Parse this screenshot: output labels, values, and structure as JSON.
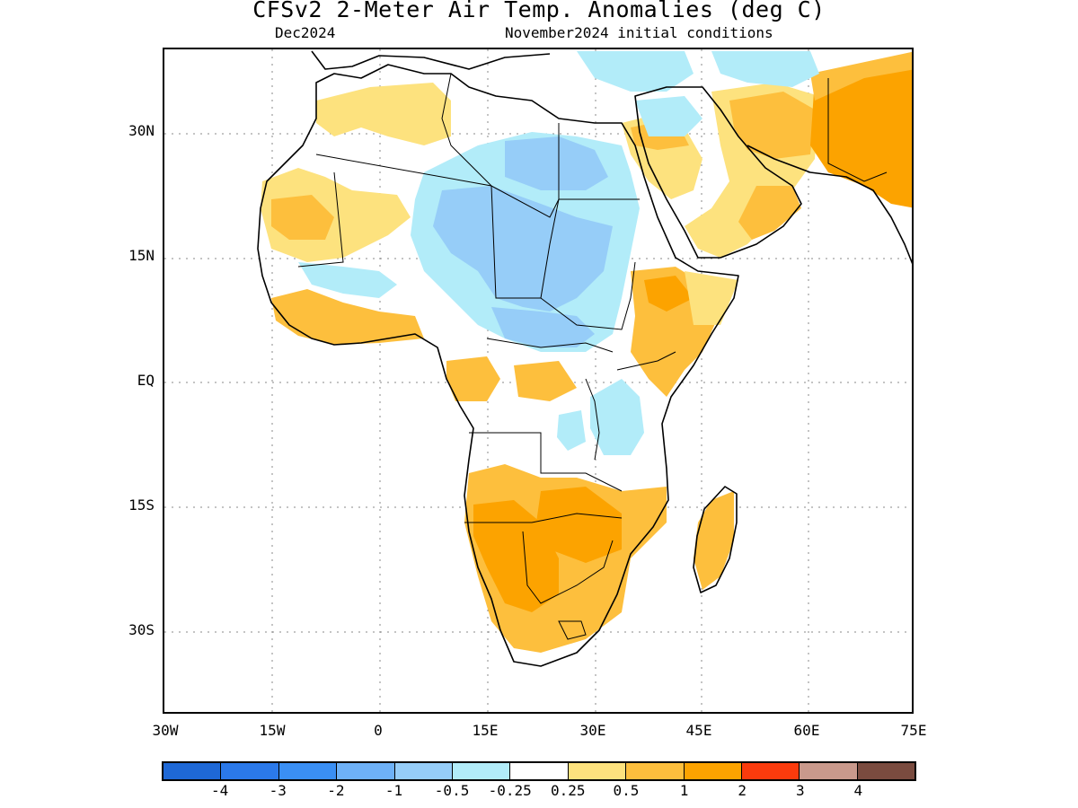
{
  "title": "CFSv2 2-Meter Air Temp. Anomalies (deg C)",
  "subtitle_left": "Dec2024",
  "subtitle_right": "November2024 initial conditions",
  "lat_labels": [
    "30N",
    "15N",
    "EQ",
    "15S",
    "30S"
  ],
  "lon_labels": [
    "30W",
    "15W",
    "0",
    "15E",
    "30E",
    "45E",
    "60E",
    "75E"
  ],
  "colorbar": {
    "colors": [
      "#1e68d6",
      "#2b79ea",
      "#3a8ff4",
      "#6eb1f7",
      "#96cdf8",
      "#b2ecf9",
      "#ffffff",
      "#fde27e",
      "#fdbf3d",
      "#fca300",
      "#fb3b0d",
      "#c9998c",
      "#7a4b3f"
    ],
    "labels": [
      "-4",
      "-3",
      "-2",
      "-1",
      "-0.5",
      "-0.25",
      "0.25",
      "0.5",
      "1",
      "2",
      "3",
      "4"
    ]
  },
  "map_legend_colors": {
    "strong_cool": "#96cdf8",
    "weak_cool": "#b2ecf9",
    "weak_warm": "#fde27e",
    "warm": "#fdbf3d",
    "strong_warm": "#fca300"
  }
}
